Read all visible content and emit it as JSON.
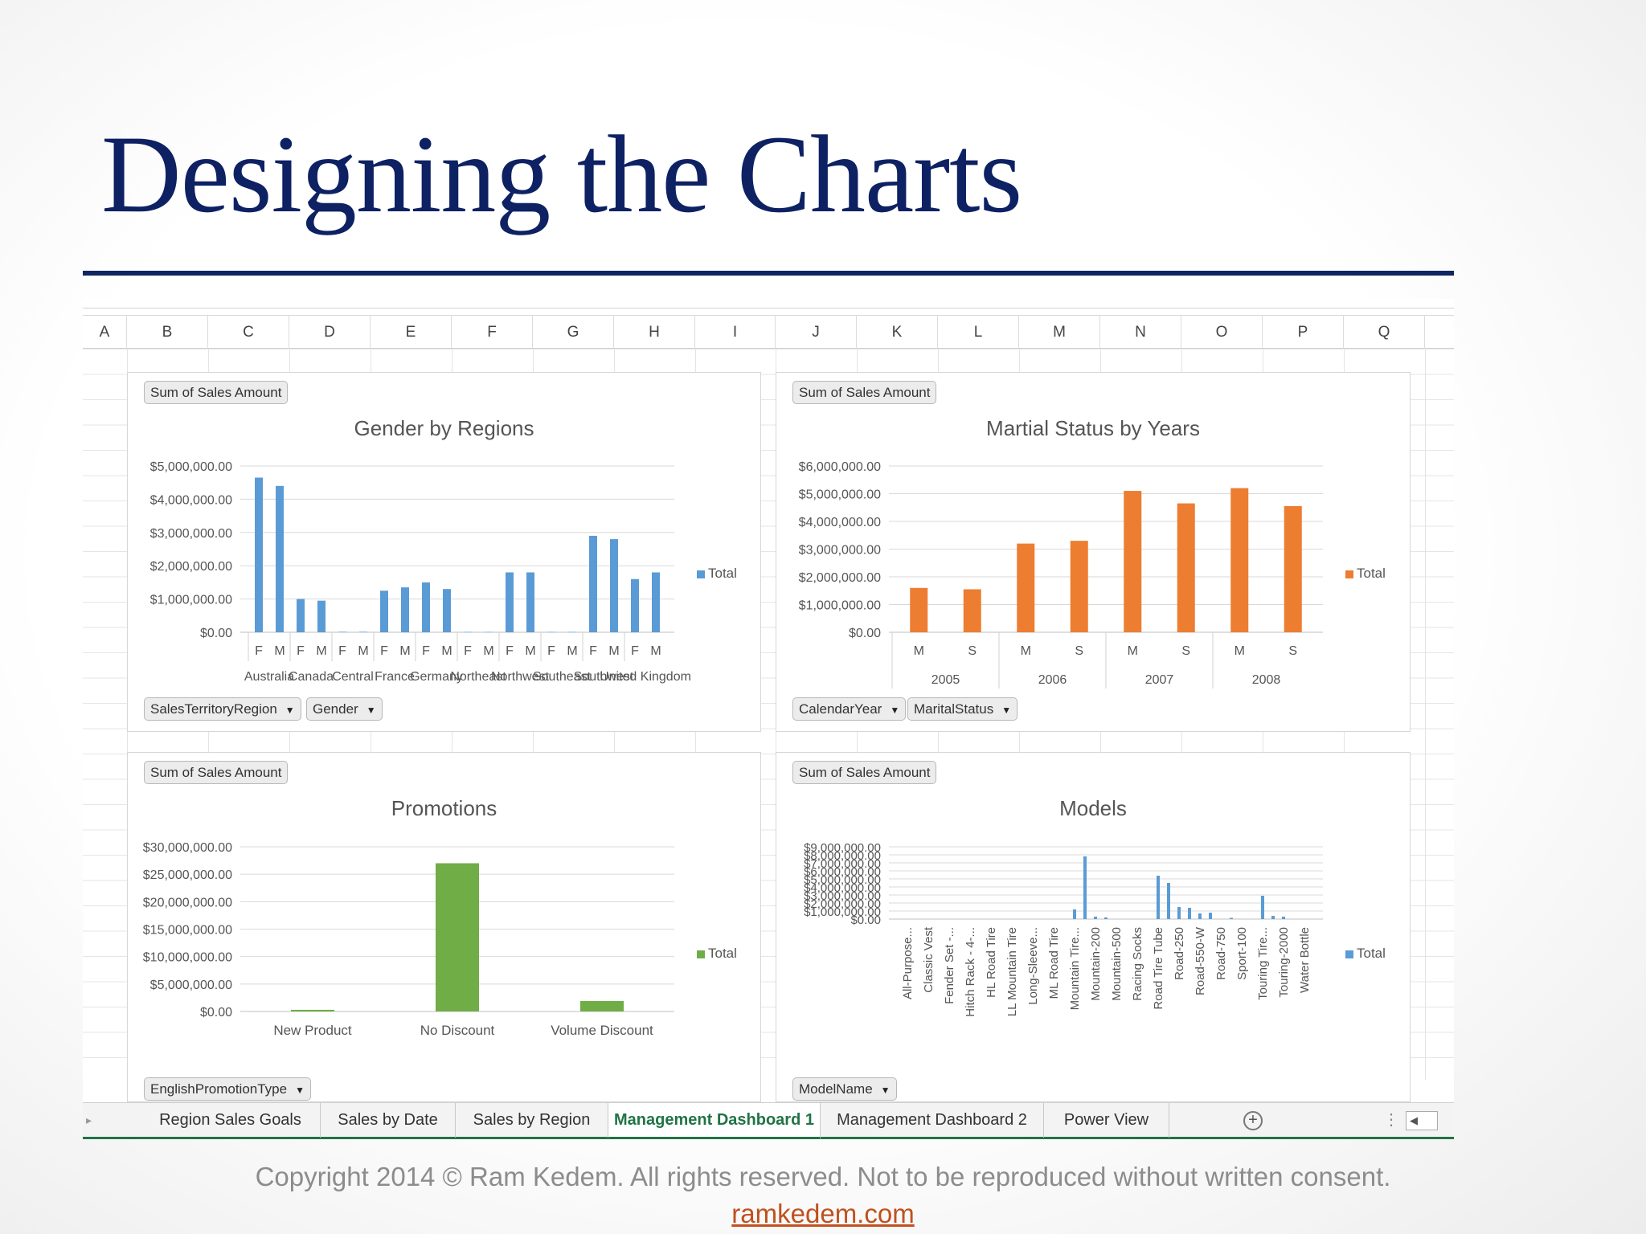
{
  "slide": {
    "title": "Designing the Charts",
    "copyright": "Copyright 2014 © Ram Kedem. All rights reserved. Not to be reproduced without written consent.",
    "link": "ramkedem.com"
  },
  "excel": {
    "columns": [
      "A",
      "B",
      "C",
      "D",
      "E",
      "F",
      "G",
      "H",
      "I",
      "J",
      "K",
      "L",
      "M",
      "N",
      "O",
      "P",
      "Q"
    ],
    "tabs": [
      "Region Sales Goals",
      "Sales by Date",
      "Sales by Region",
      "Management Dashboard 1",
      "Management Dashboard 2",
      "Power View"
    ],
    "active_tab": "Management Dashboard 1",
    "accent_color": "#217346"
  },
  "charts": [
    {
      "value_button": "Sum of Sales Amount",
      "title": "Gender by Regions",
      "axis_buttons": [
        "SalesTerritoryRegion",
        "Gender"
      ],
      "legend": "Total"
    },
    {
      "value_button": "Sum of Sales Amount",
      "title": "Martial Status by Years",
      "axis_buttons": [
        "CalendarYear",
        "MaritalStatus"
      ],
      "legend": "Total"
    },
    {
      "value_button": "Sum of Sales Amount",
      "title": "Promotions",
      "axis_buttons": [
        "EnglishPromotionType"
      ],
      "legend": "Total"
    },
    {
      "value_button": "Sum of Sales Amount",
      "title": "Models",
      "axis_buttons": [
        "ModelName"
      ],
      "legend": "Total"
    }
  ],
  "chart_data": [
    {
      "type": "bar",
      "title": "Gender by Regions",
      "color": "#5b9bd5",
      "ylim": [
        0,
        5000000
      ],
      "yticks": [
        "$0.00",
        "$1,000,000.00",
        "$2,000,000.00",
        "$3,000,000.00",
        "$4,000,000.00",
        "$5,000,000.00"
      ],
      "groups": [
        "Australia",
        "Canada",
        "Central",
        "France",
        "Germany",
        "Northeast",
        "Northwest",
        "Southeast",
        "Southwest",
        "United Kingdom"
      ],
      "subcategories": [
        "F",
        "M"
      ],
      "values": [
        4650000,
        4400000,
        1000000,
        950000,
        15000,
        15000,
        1250000,
        1350000,
        1500000,
        1300000,
        10000,
        10000,
        1800000,
        1800000,
        10000,
        10000,
        2900000,
        2800000,
        1600000,
        1800000
      ],
      "grid": true,
      "legend": "right",
      "series": [
        {
          "name": "Total"
        }
      ]
    },
    {
      "type": "bar",
      "title": "Martial Status by Years",
      "color": "#ed7d31",
      "ylim": [
        0,
        6000000
      ],
      "yticks": [
        "$0.00",
        "$1,000,000.00",
        "$2,000,000.00",
        "$3,000,000.00",
        "$4,000,000.00",
        "$5,000,000.00",
        "$6,000,000.00"
      ],
      "groups": [
        "2005",
        "2006",
        "2007",
        "2008"
      ],
      "subcategories": [
        "M",
        "S"
      ],
      "values": [
        1600000,
        1550000,
        3200000,
        3300000,
        5100000,
        4650000,
        5200000,
        4550000
      ],
      "grid": true,
      "legend": "right",
      "series": [
        {
          "name": "Total"
        }
      ]
    },
    {
      "type": "bar",
      "title": "Promotions",
      "color": "#70ad47",
      "ylim": [
        0,
        30000000
      ],
      "yticks": [
        "$0.00",
        "$5,000,000.00",
        "$10,000,000.00",
        "$15,000,000.00",
        "$20,000,000.00",
        "$25,000,000.00",
        "$30,000,000.00"
      ],
      "categories": [
        "New Product",
        "No Discount",
        "Volume Discount"
      ],
      "values": [
        300000,
        27000000,
        1900000
      ],
      "grid": true,
      "legend": "right",
      "series": [
        {
          "name": "Total"
        }
      ]
    },
    {
      "type": "bar",
      "title": "Models",
      "color": "#5b9bd5",
      "ylim": [
        0,
        9000000
      ],
      "yticks": [
        "$0.00",
        "$1,000,000.00",
        "$2,000,000.00",
        "$3,000,000.00",
        "$4,000,000.00",
        "$5,000,000.00",
        "$6,000,000.00",
        "$7,000,000.00",
        "$8,000,000.00",
        "$9,000,000.00"
      ],
      "categories": [
        "All-Purpose...",
        "Classic Vest",
        "Fender Set -...",
        "Hitch Rack - 4-...",
        "HL Road Tire",
        "LL Mountain Tire",
        "Long-Sleeve...",
        "ML Road Tire",
        "Mountain Tire...",
        "Mountain-200",
        "Mountain-500",
        "Racing Socks",
        "Road Tire Tube",
        "Road-250",
        "Road-550-W",
        "Road-750",
        "Sport-100",
        "Touring Tire...",
        "Touring-2000",
        "Water Bottle"
      ],
      "bars": [
        {
          "slot": 8.5,
          "value": 1200000
        },
        {
          "slot": 9,
          "value": 7800000
        },
        {
          "slot": 9.5,
          "value": 300000
        },
        {
          "slot": 10,
          "value": 200000
        },
        {
          "slot": 12.5,
          "value": 5400000
        },
        {
          "slot": 13,
          "value": 4500000
        },
        {
          "slot": 13.5,
          "value": 1500000
        },
        {
          "slot": 14,
          "value": 1400000
        },
        {
          "slot": 14.5,
          "value": 700000
        },
        {
          "slot": 15,
          "value": 800000
        },
        {
          "slot": 16,
          "value": 150000
        },
        {
          "slot": 17.5,
          "value": 2900000
        },
        {
          "slot": 18,
          "value": 400000
        },
        {
          "slot": 18.5,
          "value": 300000
        }
      ],
      "grid": true,
      "legend": "right",
      "series": [
        {
          "name": "Total"
        }
      ]
    }
  ]
}
